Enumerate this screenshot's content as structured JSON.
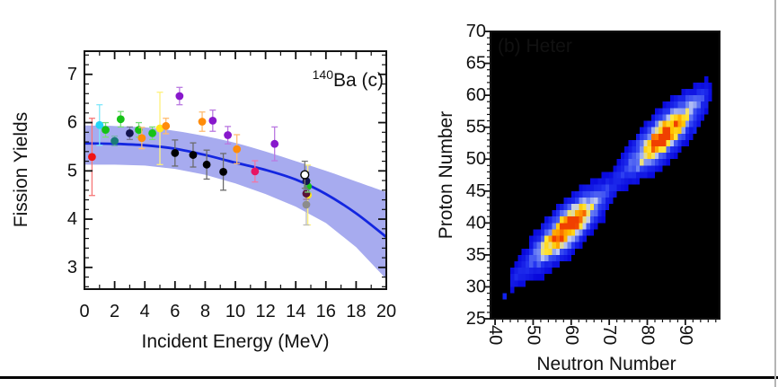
{
  "figure": {
    "background": "#ffffff",
    "bottom_rule_color": "#000000",
    "right_border_color": "#b4b4b4"
  },
  "chart_data": [
    {
      "type": "scatter",
      "title": "",
      "annotation": {
        "sup": "140",
        "main": "Ba  (c)"
      },
      "xlabel": "Incident Energy (MeV)",
      "ylabel": "Fission Yields",
      "xlim": [
        0,
        20
      ],
      "ylim": [
        2.55,
        7.48
      ],
      "x_major_ticks": [
        0,
        2,
        4,
        6,
        8,
        10,
        12,
        14,
        16,
        18,
        20
      ],
      "x_minor_step": 1,
      "y_major_ticks": [
        3,
        4,
        5,
        6,
        7
      ],
      "y_minor_step": 0.2,
      "fit_color": "#1326e0",
      "band_color": "#a7abef",
      "fit_x": [
        0,
        2,
        4,
        6,
        8,
        10,
        12,
        14,
        16,
        18,
        20
      ],
      "fit_y": [
        5.57,
        5.56,
        5.53,
        5.46,
        5.33,
        5.17,
        5.02,
        4.82,
        4.52,
        4.12,
        3.63
      ],
      "band_upper": [
        5.94,
        5.93,
        5.9,
        5.83,
        5.72,
        5.58,
        5.4,
        5.2,
        5.0,
        4.78,
        4.56
      ],
      "band_lower": [
        5.13,
        5.13,
        5.11,
        5.04,
        4.92,
        4.74,
        4.52,
        4.26,
        3.92,
        3.42,
        2.76
      ],
      "points": [
        {
          "x": 0.5,
          "y": 5.29,
          "err": 0.8,
          "color": "#f01414"
        },
        {
          "x": 1.0,
          "y": 5.95,
          "err": 0.42,
          "color": "#22d6f6"
        },
        {
          "x": 1.4,
          "y": 5.85,
          "err": 0.15,
          "color": "#16c216"
        },
        {
          "x": 2.0,
          "y": 5.62,
          "err": 0.1,
          "color": "#1a7a78"
        },
        {
          "x": 2.4,
          "y": 6.07,
          "err": 0.16,
          "color": "#16c216"
        },
        {
          "x": 3.0,
          "y": 5.78,
          "err": 0.13,
          "color": "#14144f"
        },
        {
          "x": 3.6,
          "y": 5.85,
          "err": 0.15,
          "color": "#16c216"
        },
        {
          "x": 3.8,
          "y": 5.68,
          "err": 0.22,
          "color": "#ff8c0a"
        },
        {
          "x": 4.5,
          "y": 5.78,
          "err": 0.13,
          "color": "#16c216"
        },
        {
          "x": 5.0,
          "y": 5.88,
          "err": 0.75,
          "color": "#ffe81e"
        },
        {
          "x": 5.4,
          "y": 5.93,
          "err": 0.16,
          "color": "#ff8c0a"
        },
        {
          "x": 6.0,
          "y": 5.37,
          "err": 0.27,
          "color": "#000000"
        },
        {
          "x": 6.3,
          "y": 6.55,
          "err": 0.18,
          "color": "#8818cc"
        },
        {
          "x": 7.2,
          "y": 5.33,
          "err": 0.25,
          "color": "#000000"
        },
        {
          "x": 7.8,
          "y": 6.02,
          "err": 0.2,
          "color": "#ff8c0a"
        },
        {
          "x": 8.1,
          "y": 5.13,
          "err": 0.3,
          "color": "#000000"
        },
        {
          "x": 8.5,
          "y": 6.04,
          "err": 0.22,
          "color": "#8818cc"
        },
        {
          "x": 9.2,
          "y": 4.98,
          "err": 0.38,
          "color": "#000000"
        },
        {
          "x": 9.5,
          "y": 5.74,
          "err": 0.18,
          "color": "#8818cc"
        },
        {
          "x": 10.1,
          "y": 5.45,
          "err": 0.3,
          "color": "#ff8c0a"
        },
        {
          "x": 11.3,
          "y": 4.99,
          "err": 0.22,
          "color": "#e81464"
        },
        {
          "x": 12.6,
          "y": 5.56,
          "err": 0.35,
          "color": "#8818cc"
        },
        {
          "x": 14.8,
          "y": 4.5,
          "err": 0.62,
          "color": "#ffe81e"
        },
        {
          "x": 14.7,
          "y": 4.3,
          "err": 0.42,
          "color": "#8c8c8c"
        },
        {
          "x": 14.7,
          "y": 4.53,
          "err": 0.12,
          "color": "#5a1238"
        },
        {
          "x": 14.8,
          "y": 4.68,
          "err": 0.12,
          "color": "#16c216"
        },
        {
          "x": 14.7,
          "y": 4.79,
          "err": 0.18,
          "color": "#14144f"
        },
        {
          "x": 14.6,
          "y": 4.92,
          "err": 0.28,
          "color": "#ffffff",
          "open": true
        }
      ]
    },
    {
      "type": "heatmap",
      "annotation": "(b) Heter",
      "annotation_color": "#ffffff",
      "xlabel": "Neutron Number",
      "ylabel": "Proton Number",
      "xlim": [
        38.8,
        99
      ],
      "ylim": [
        25,
        70
      ],
      "x_major_ticks": [
        40,
        50,
        60,
        70,
        80,
        90
      ],
      "x_minor_step": 2,
      "y_major_ticks": [
        25,
        30,
        35,
        40,
        45,
        50,
        55,
        60,
        65,
        70
      ],
      "y_minor_step": 1,
      "background": "#000000",
      "model": {
        "ridge": {
          "n_start": 44,
          "z_start": 30.6,
          "n_end": 96,
          "z_end": 60.4,
          "amplitude": 0.08,
          "sigma": 1.1
        },
        "blobs": [
          {
            "n": 59.0,
            "z": 39.2,
            "sigma_major": 5.2,
            "sigma_minor": 1.55,
            "amplitude": 1.0
          },
          {
            "n": 84.5,
            "z": 53.8,
            "sigma_major": 5.2,
            "sigma_minor": 1.55,
            "amplitude": 1.0
          }
        ],
        "noise": 0.3,
        "outlier_cells": [
          {
            "n": 42,
            "z": 28
          },
          {
            "n": 92,
            "z": 54
          }
        ]
      },
      "colormap": [
        [
          0.02,
          "#0808dc"
        ],
        [
          0.14,
          "#2334f0"
        ],
        [
          0.3,
          "#6e84f4"
        ],
        [
          0.43,
          "#c3cdf4"
        ],
        [
          0.54,
          "#ffe83c"
        ],
        [
          0.7,
          "#ffc400"
        ],
        [
          0.82,
          "#ff8800"
        ],
        [
          0.93,
          "#f04000"
        ]
      ]
    }
  ]
}
